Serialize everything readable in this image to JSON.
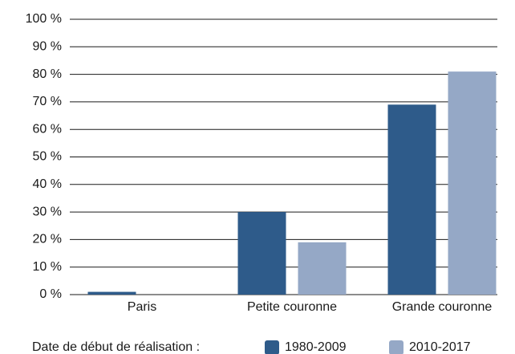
{
  "chart_data": {
    "type": "bar",
    "categories": [
      "Paris",
      "Petite couronne",
      "Grande couronne"
    ],
    "series": [
      {
        "name": "1980-2009",
        "color": "#2e5b8a",
        "values": [
          1,
          30,
          69
        ]
      },
      {
        "name": "2010-2017",
        "color": "#95a8c6",
        "values": [
          0,
          19,
          81
        ]
      }
    ],
    "ylim": [
      0,
      100
    ],
    "yticks": [
      {
        "value": 0,
        "label": "0 %"
      },
      {
        "value": 10,
        "label": "10 %"
      },
      {
        "value": 20,
        "label": "20 %"
      },
      {
        "value": 30,
        "label": "30 %"
      },
      {
        "value": 40,
        "label": "40 %"
      },
      {
        "value": 50,
        "label": "50 %"
      },
      {
        "value": 60,
        "label": "60 %"
      },
      {
        "value": 70,
        "label": "70 %"
      },
      {
        "value": 80,
        "label": "80 %"
      },
      {
        "value": 90,
        "label": "90 %"
      },
      {
        "value": 100,
        "label": "100 %"
      }
    ],
    "grid": true,
    "legend_title": "Date de début de réalisation :",
    "legend_position": "bottom"
  }
}
